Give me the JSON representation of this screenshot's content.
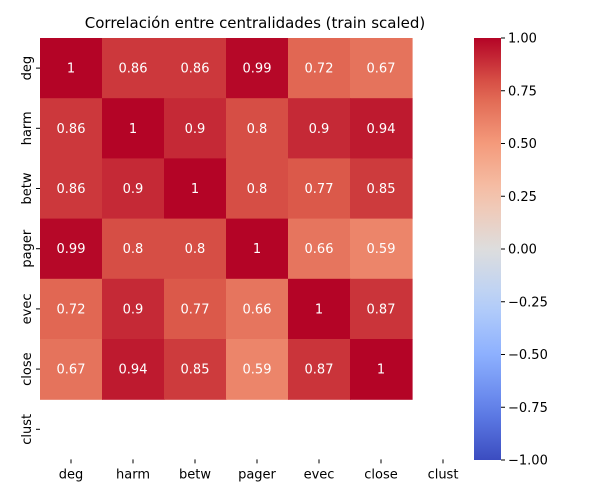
{
  "chart_data": {
    "type": "heatmap",
    "title": "Correlación entre centralidades (train scaled)",
    "xlabel": "",
    "ylabel": "",
    "x_categories": [
      "deg",
      "harm",
      "betw",
      "pager",
      "evec",
      "close",
      "clust"
    ],
    "y_categories": [
      "deg",
      "harm",
      "betw",
      "pager",
      "evec",
      "close",
      "clust"
    ],
    "values": [
      [
        1,
        0.86,
        0.86,
        0.99,
        0.72,
        0.67,
        null
      ],
      [
        0.86,
        1,
        0.9,
        0.8,
        0.9,
        0.94,
        null
      ],
      [
        0.86,
        0.9,
        1,
        0.8,
        0.77,
        0.85,
        null
      ],
      [
        0.99,
        0.8,
        0.8,
        1,
        0.66,
        0.59,
        null
      ],
      [
        0.72,
        0.9,
        0.77,
        0.66,
        1,
        0.87,
        null
      ],
      [
        0.67,
        0.94,
        0.85,
        0.59,
        0.87,
        1,
        null
      ],
      [
        null,
        null,
        null,
        null,
        null,
        null,
        null
      ]
    ],
    "annotations": [
      [
        "1",
        "0.86",
        "0.86",
        "0.99",
        "0.72",
        "0.67",
        ""
      ],
      [
        "0.86",
        "1",
        "0.9",
        "0.8",
        "0.9",
        "0.94",
        ""
      ],
      [
        "0.86",
        "0.9",
        "1",
        "0.8",
        "0.77",
        "0.85",
        ""
      ],
      [
        "0.99",
        "0.8",
        "0.8",
        "1",
        "0.66",
        "0.59",
        ""
      ],
      [
        "0.72",
        "0.9",
        "0.77",
        "0.66",
        "1",
        "0.87",
        ""
      ],
      [
        "0.67",
        "0.94",
        "0.85",
        "0.59",
        "0.87",
        "1",
        ""
      ],
      [
        "",
        "",
        "",
        "",
        "",
        "",
        ""
      ]
    ],
    "colormap": "coolwarm",
    "vmin": -1,
    "vmax": 1,
    "colorbar_ticks": [
      "1.00",
      "0.75",
      "0.50",
      "0.25",
      "0.00",
      "−0.25",
      "−0.50",
      "−0.75",
      "−1.00"
    ],
    "colorbar_tick_values": [
      1,
      0.75,
      0.5,
      0.25,
      0,
      -0.25,
      -0.5,
      -0.75,
      -1
    ],
    "colorbar_placement": "right",
    "grid": false
  }
}
